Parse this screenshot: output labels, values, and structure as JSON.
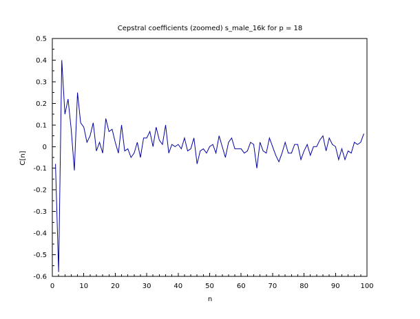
{
  "chart_data": {
    "type": "line",
    "title": "Cepstral coefficients (zoomed) s_male_16k for p = 18",
    "xlabel": "n",
    "ylabel": "C[n]",
    "xlim": [
      0,
      100
    ],
    "ylim": [
      -0.6,
      0.5
    ],
    "xticks": [
      0,
      10,
      20,
      30,
      40,
      50,
      60,
      70,
      80,
      90,
      100
    ],
    "yticks": [
      -0.6,
      -0.5,
      -0.4,
      -0.3,
      -0.2,
      -0.1,
      0,
      0.1,
      0.2,
      0.3,
      0.4,
      0.5
    ],
    "xtick_labels": [
      "0",
      "10",
      "20",
      "30",
      "40",
      "50",
      "60",
      "70",
      "80",
      "90",
      "100"
    ],
    "ytick_labels": [
      "-0.6",
      "-0.5",
      "-0.4",
      "-0.3",
      "-0.2",
      "-0.1",
      "0",
      "0.1",
      "0.2",
      "0.3",
      "0.4",
      "0.5"
    ],
    "grid": false,
    "series": [
      {
        "color": "#0000a0",
        "x": [
          1,
          2,
          3,
          4,
          5,
          6,
          7,
          8,
          9,
          10,
          11,
          12,
          13,
          14,
          15,
          16,
          17,
          18,
          19,
          20,
          21,
          22,
          23,
          24,
          25,
          26,
          27,
          28,
          29,
          30,
          31,
          32,
          33,
          34,
          35,
          36,
          37,
          38,
          39,
          40,
          41,
          42,
          43,
          44,
          45,
          46,
          47,
          48,
          49,
          50,
          51,
          52,
          53,
          54,
          55,
          56,
          57,
          58,
          59,
          60,
          61,
          62,
          63,
          64,
          65,
          66,
          67,
          68,
          69,
          70,
          71,
          72,
          73,
          74,
          75,
          76,
          77,
          78,
          79,
          80,
          81,
          82,
          83,
          84,
          85,
          86,
          87,
          88,
          89,
          90,
          91,
          92,
          93,
          94,
          95,
          96,
          97,
          98,
          99
        ],
        "y": [
          -0.08,
          -0.58,
          0.4,
          0.15,
          0.22,
          0.08,
          -0.11,
          0.25,
          0.11,
          0.09,
          0.02,
          0.05,
          0.11,
          -0.02,
          0.02,
          -0.03,
          0.13,
          0.07,
          0.08,
          0.02,
          -0.03,
          0.1,
          -0.02,
          -0.01,
          -0.05,
          -0.03,
          0.02,
          -0.05,
          0.04,
          0.04,
          0.07,
          0.0,
          0.09,
          0.03,
          0.01,
          0.1,
          -0.03,
          0.01,
          0.0,
          0.01,
          -0.01,
          0.04,
          -0.02,
          -0.01,
          0.04,
          -0.08,
          -0.02,
          -0.01,
          -0.03,
          0.0,
          0.01,
          -0.03,
          0.05,
          0.0,
          -0.05,
          0.02,
          0.04,
          -0.01,
          -0.01,
          -0.01,
          -0.03,
          -0.02,
          0.02,
          0.01,
          -0.1,
          0.02,
          -0.02,
          -0.03,
          0.04,
          0.0,
          -0.04,
          -0.07,
          -0.03,
          0.02,
          -0.03,
          -0.03,
          0.01,
          0.01,
          -0.06,
          -0.02,
          0.01,
          -0.04,
          0.0,
          0.0,
          0.03,
          0.05,
          -0.02,
          0.04,
          0.01,
          0.0,
          -0.06,
          -0.01,
          -0.06,
          -0.02,
          -0.03,
          0.02,
          0.01,
          0.02,
          0.06
        ]
      }
    ]
  }
}
